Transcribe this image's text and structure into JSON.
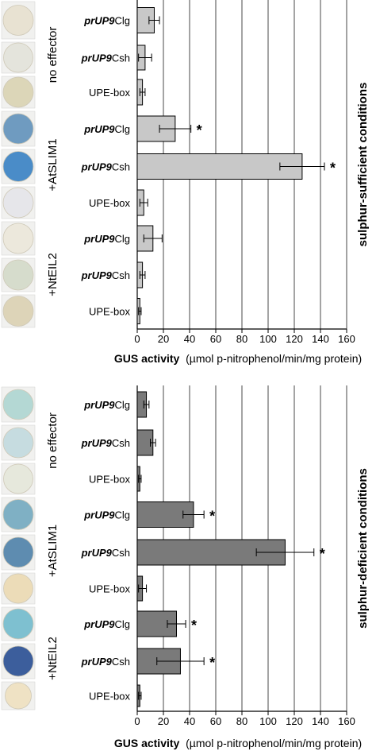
{
  "chart_data": [
    {
      "type": "bar",
      "orientation": "horizontal",
      "side_title": "sulphur-sufficient conditions",
      "xlabel_bold": "GUS activity",
      "xlabel_rest": "(µmol p-nitrophenol/min/mg protein)",
      "xlim": [
        0,
        160
      ],
      "xticks": [
        0,
        20,
        40,
        60,
        80,
        100,
        120,
        140,
        160
      ],
      "grid": true,
      "bar_color": "#c8c8c8",
      "groups": [
        "no effector",
        "+AtSLIM1",
        "+NtEIL2"
      ],
      "categories": [
        {
          "prefix": "prUP9",
          "suffix": "Clg"
        },
        {
          "prefix": "prUP9",
          "suffix": "Csh"
        },
        {
          "prefix": "",
          "suffix": "UPE-box"
        },
        {
          "prefix": "prUP9",
          "suffix": "Clg"
        },
        {
          "prefix": "prUP9",
          "suffix": "Csh"
        },
        {
          "prefix": "",
          "suffix": "UPE-box"
        },
        {
          "prefix": "prUP9",
          "suffix": "Clg"
        },
        {
          "prefix": "prUP9",
          "suffix": "Csh"
        },
        {
          "prefix": "",
          "suffix": "UPE-box"
        }
      ],
      "values": [
        13,
        6,
        4,
        29,
        126,
        5,
        12,
        4,
        2
      ],
      "errors": [
        4,
        5,
        2,
        12,
        17,
        3,
        7,
        2,
        1
      ],
      "significance": [
        "",
        "",
        "",
        "*",
        "*",
        "",
        "",
        "",
        ""
      ],
      "assay_colors": [
        "#e8e2d2",
        "#e4e4dc",
        "#dcd6b8",
        "#6f9bc0",
        "#4a8cc8",
        "#e6e6ea",
        "#ece8dc",
        "#d6dccc",
        "#ddd4b8"
      ]
    },
    {
      "type": "bar",
      "orientation": "horizontal",
      "side_title": "sulphur-deficient conditions",
      "xlabel_bold": "GUS activity",
      "xlabel_rest": "(µmol p-nitrophenol/min/mg protein)",
      "xlim": [
        0,
        160
      ],
      "xticks": [
        0,
        20,
        40,
        60,
        80,
        100,
        120,
        140,
        160
      ],
      "grid": true,
      "bar_color": "#7a7a7a",
      "groups": [
        "no effector",
        "+AtSLIM1",
        "+NtEIL2"
      ],
      "categories": [
        {
          "prefix": "prUP9",
          "suffix": "Clg"
        },
        {
          "prefix": "prUP9",
          "suffix": "Csh"
        },
        {
          "prefix": "",
          "suffix": "UPE-box"
        },
        {
          "prefix": "prUP9",
          "suffix": "Clg"
        },
        {
          "prefix": "prUP9",
          "suffix": "Csh"
        },
        {
          "prefix": "",
          "suffix": "UPE-box"
        },
        {
          "prefix": "prUP9",
          "suffix": "Clg"
        },
        {
          "prefix": "prUP9",
          "suffix": "Csh"
        },
        {
          "prefix": "",
          "suffix": "UPE-box"
        }
      ],
      "values": [
        7,
        12,
        2,
        43,
        113,
        4,
        30,
        33,
        2
      ],
      "errors": [
        2,
        2,
        1,
        8,
        22,
        3,
        7,
        18,
        1
      ],
      "significance": [
        "",
        "",
        "",
        "*",
        "*",
        "",
        "*",
        "*",
        ""
      ],
      "assay_colors": [
        "#b4d8d4",
        "#c6dce0",
        "#e6e8dc",
        "#7fb0c4",
        "#5e8cb0",
        "#ecdcb8",
        "#7ec0d0",
        "#3c5e9c",
        "#efe2c4"
      ]
    }
  ]
}
